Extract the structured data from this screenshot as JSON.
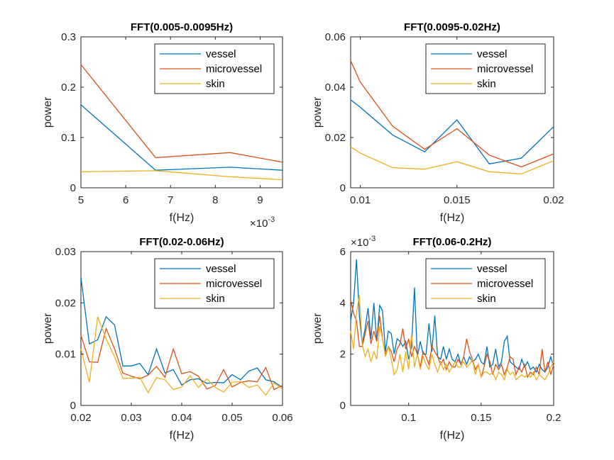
{
  "colors": {
    "vessel": "#0072BD",
    "microvessel": "#D95319",
    "skin": "#EDB120",
    "axes": "#262626"
  },
  "chart_data": [
    {
      "type": "line",
      "title": "FFT(0.005-0.0095Hz)",
      "xlabel": "f(Hz)",
      "ylabel": "power",
      "x_exponent": -3,
      "x_exponent_label": "×10",
      "xlim": [
        5,
        9.5
      ],
      "ylim": [
        0,
        0.3
      ],
      "xticks": [
        "5",
        "6",
        "7",
        "8",
        "9"
      ],
      "xtick_values": [
        5,
        6,
        7,
        8,
        9
      ],
      "yticks": [
        "0",
        "0.1",
        "0.2",
        "0.3"
      ],
      "ytick_values": [
        0,
        0.1,
        0.2,
        0.3
      ],
      "legend": "top-right",
      "grid": false,
      "x": [
        5,
        6.667,
        8.333,
        9.5
      ],
      "series": [
        {
          "name": "vessel",
          "values": [
            0.165,
            0.035,
            0.041,
            0.035
          ]
        },
        {
          "name": "microvessel",
          "values": [
            0.245,
            0.06,
            0.07,
            0.051
          ]
        },
        {
          "name": "skin",
          "values": [
            0.032,
            0.034,
            0.022,
            0.016
          ]
        }
      ]
    },
    {
      "type": "line",
      "title": "FFT(0.0095-0.02Hz)",
      "xlabel": "f(Hz)",
      "ylabel": "power",
      "xlim": [
        0.0095,
        0.02
      ],
      "ylim": [
        0,
        0.06
      ],
      "xticks": [
        "0.01",
        "0.015",
        "0.02"
      ],
      "xtick_values": [
        0.01,
        0.015,
        0.02
      ],
      "yticks": [
        "0",
        "0.02",
        "0.04",
        "0.06"
      ],
      "ytick_values": [
        0,
        0.02,
        0.04,
        0.06
      ],
      "legend": "top-right",
      "grid": false,
      "x": [
        0.0095,
        0.01,
        0.01167,
        0.01333,
        0.015,
        0.01667,
        0.01833,
        0.02
      ],
      "series": [
        {
          "name": "vessel",
          "values": [
            0.035,
            0.032,
            0.021,
            0.0143,
            0.027,
            0.0095,
            0.0118,
            0.0243
          ]
        },
        {
          "name": "microvessel",
          "values": [
            0.0505,
            0.042,
            0.0245,
            0.0153,
            0.0235,
            0.013,
            0.0083,
            0.0135
          ]
        },
        {
          "name": "skin",
          "values": [
            0.0163,
            0.0138,
            0.008,
            0.0074,
            0.0104,
            0.0064,
            0.0055,
            0.0108
          ]
        }
      ]
    },
    {
      "type": "line",
      "title": "FFT(0.02-0.06Hz)",
      "xlabel": "f(Hz)",
      "ylabel": "power",
      "xlim": [
        0.02,
        0.06
      ],
      "ylim": [
        0,
        0.03
      ],
      "xticks": [
        "0.02",
        "0.03",
        "0.04",
        "0.05",
        "0.06"
      ],
      "xtick_values": [
        0.02,
        0.03,
        0.04,
        0.05,
        0.06
      ],
      "yticks": [
        "0",
        "0.01",
        "0.02",
        "0.03"
      ],
      "ytick_values": [
        0,
        0.01,
        0.02,
        0.03
      ],
      "legend": "top-right",
      "grid": false,
      "x": [
        0.02,
        0.02167,
        0.02333,
        0.025,
        0.02667,
        0.02833,
        0.03,
        0.03167,
        0.03333,
        0.035,
        0.03667,
        0.03833,
        0.04,
        0.04167,
        0.04333,
        0.045,
        0.04667,
        0.04833,
        0.05,
        0.05167,
        0.05333,
        0.055,
        0.05667,
        0.05833,
        0.06
      ],
      "series": [
        {
          "name": "vessel",
          "values": [
            0.025,
            0.012,
            0.0128,
            0.0173,
            0.0157,
            0.0077,
            0.0077,
            0.0082,
            0.006,
            0.011,
            0.0063,
            0.007,
            0.004,
            0.005,
            0.0052,
            0.0043,
            0.0045,
            0.0044,
            0.006,
            0.005,
            0.0067,
            0.0073,
            0.005,
            0.0046,
            0.0035
          ]
        },
        {
          "name": "microvessel",
          "values": [
            0.0137,
            0.0085,
            0.0084,
            0.015,
            0.011,
            0.0063,
            0.0057,
            0.0052,
            0.0059,
            0.0076,
            0.0055,
            0.011,
            0.0062,
            0.0066,
            0.0057,
            0.0032,
            0.0039,
            0.007,
            0.0036,
            0.0045,
            0.0048,
            0.0046,
            0.0074,
            0.0031,
            0.0039
          ]
        },
        {
          "name": "skin",
          "values": [
            0.011,
            0.0045,
            0.0173,
            0.013,
            0.0095,
            0.0053,
            0.0053,
            0.0055,
            0.0025,
            0.0054,
            0.005,
            0.0031,
            0.0036,
            0.0058,
            0.0035,
            0.0052,
            0.0035,
            0.0026,
            0.0045,
            0.0047,
            0.0035,
            0.004,
            0.002,
            0.0044,
            0.0031
          ]
        }
      ]
    },
    {
      "type": "line",
      "title": "FFT(0.06-0.2Hz)",
      "xlabel": "f(Hz)",
      "ylabel": "power",
      "y_exponent": -3,
      "y_exponent_label": "×10",
      "xlim": [
        0.06,
        0.2
      ],
      "ylim": [
        0,
        6
      ],
      "xticks": [
        "0.1",
        "0.15",
        "0.2"
      ],
      "xtick_values": [
        0.1,
        0.15,
        0.2
      ],
      "yticks": [
        "0",
        "2",
        "4",
        "6"
      ],
      "ytick_values": [
        0,
        2,
        4,
        6
      ],
      "legend": "top-right",
      "grid": false,
      "x": [
        0.06,
        0.062,
        0.064,
        0.066,
        0.068,
        0.07,
        0.072,
        0.074,
        0.076,
        0.078,
        0.08,
        0.082,
        0.084,
        0.086,
        0.088,
        0.09,
        0.092,
        0.094,
        0.096,
        0.098,
        0.1,
        0.102,
        0.104,
        0.106,
        0.108,
        0.11,
        0.112,
        0.114,
        0.116,
        0.118,
        0.12,
        0.122,
        0.124,
        0.126,
        0.128,
        0.13,
        0.132,
        0.134,
        0.136,
        0.138,
        0.14,
        0.142,
        0.144,
        0.146,
        0.148,
        0.15,
        0.152,
        0.154,
        0.156,
        0.158,
        0.16,
        0.162,
        0.164,
        0.166,
        0.168,
        0.17,
        0.172,
        0.174,
        0.176,
        0.178,
        0.18,
        0.182,
        0.184,
        0.186,
        0.188,
        0.19,
        0.192,
        0.194,
        0.196,
        0.198,
        0.2
      ],
      "series": [
        {
          "name": "vessel",
          "values": [
            3.3,
            4.0,
            5.7,
            3.5,
            2.4,
            3.0,
            3.8,
            2.6,
            4.0,
            2.5,
            3.9,
            3.7,
            2.1,
            2.9,
            2.8,
            2.0,
            2.6,
            2.5,
            2.3,
            2.5,
            1.8,
            2.3,
            4.6,
            1.9,
            2.5,
            2.0,
            2.0,
            3.2,
            2.1,
            3.5,
            1.9,
            1.8,
            2.3,
            1.8,
            2.2,
            1.8,
            1.7,
            2.0,
            1.6,
            1.9,
            1.6,
            1.9,
            1.7,
            1.8,
            2.0,
            1.7,
            1.6,
            2.3,
            1.5,
            1.6,
            2.2,
            1.5,
            1.7,
            2.5,
            2.7,
            1.7,
            1.6,
            1.5,
            1.4,
            1.8,
            1.5,
            1.7,
            1.4,
            1.5,
            1.3,
            1.6,
            1.4,
            1.3,
            1.5,
            1.9,
            1.5
          ]
        },
        {
          "name": "microvessel",
          "values": [
            4.1,
            3.6,
            3.3,
            2.3,
            2.3,
            2.8,
            3.3,
            2.4,
            2.9,
            2.5,
            3.5,
            2.6,
            2.0,
            2.3,
            2.1,
            1.7,
            2.2,
            2.4,
            3.0,
            2.2,
            2.6,
            1.9,
            2.3,
            2.0,
            1.5,
            2.1,
            1.9,
            1.6,
            2.3,
            2.1,
            1.9,
            1.6,
            1.8,
            1.4,
            1.7,
            1.5,
            1.5,
            1.8,
            1.6,
            1.9,
            2.6,
            2.1,
            1.8,
            1.4,
            1.6,
            1.1,
            1.5,
            2.0,
            1.7,
            1.2,
            1.6,
            1.4,
            1.6,
            1.2,
            1.5,
            1.9,
            1.8,
            1.2,
            1.5,
            1.3,
            1.6,
            1.1,
            1.3,
            1.2,
            1.5,
            1.2,
            2.2,
            1.3,
            1.7,
            1.2,
            1.6
          ]
        },
        {
          "name": "skin",
          "values": [
            2.9,
            2.2,
            3.6,
            4.3,
            2.4,
            1.9,
            2.2,
            1.7,
            2.1,
            1.8,
            3.1,
            2.6,
            1.9,
            2.3,
            1.8,
            1.2,
            1.4,
            2.0,
            1.3,
            2.1,
            1.4,
            2.8,
            1.5,
            2.0,
            1.4,
            1.9,
            1.6,
            1.4,
            2.0,
            1.6,
            1.3,
            1.7,
            1.4,
            1.6,
            1.3,
            1.5,
            1.7,
            1.5,
            1.5,
            1.7,
            1.5,
            1.6,
            1.8,
            1.2,
            1.6,
            1.1,
            1.3,
            1.3,
            1.2,
            1.3,
            1.0,
            1.3,
            1.2,
            1.0,
            1.4,
            1.2,
            1.3,
            1.0,
            1.1,
            1.2,
            1.1,
            1.2,
            1.1,
            1.3,
            1.0,
            1.2,
            1.1,
            1.0,
            1.2,
            1.5,
            1.7
          ]
        }
      ]
    }
  ]
}
